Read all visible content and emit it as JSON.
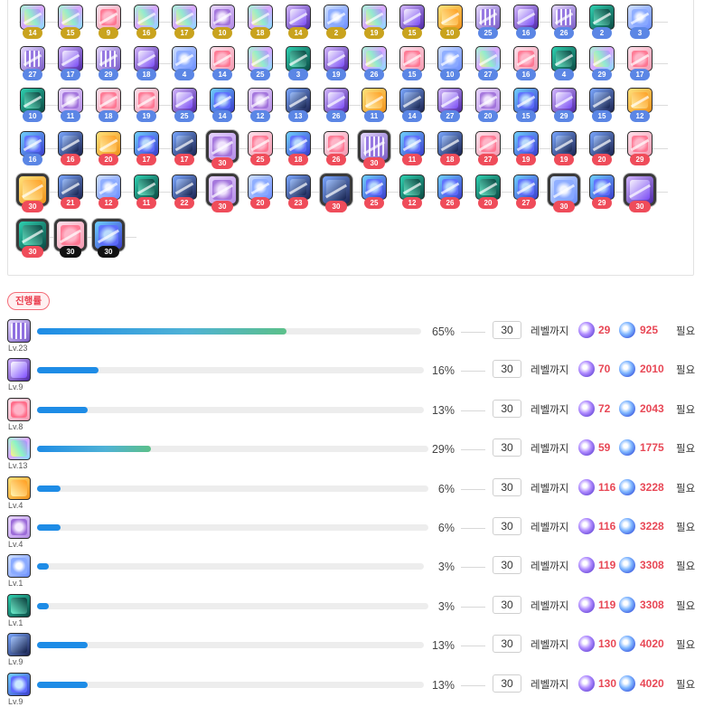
{
  "core_grid": {
    "rows": [
      [
        {
          "t": "rainbow",
          "lv": "14",
          "c": "gold"
        },
        {
          "t": "rainbow",
          "lv": "15",
          "c": "gold"
        },
        {
          "t": "pink",
          "lv": "9",
          "c": "gold"
        },
        {
          "t": "rainbow",
          "lv": "16",
          "c": "gold"
        },
        {
          "t": "rainbow",
          "lv": "17",
          "c": "gold"
        },
        {
          "t": "violet",
          "lv": "10",
          "c": "gold"
        },
        {
          "t": "rainbow",
          "lv": "18",
          "c": "gold"
        },
        {
          "t": "purple",
          "lv": "14",
          "c": "gold"
        },
        {
          "t": "gem",
          "lv": "2",
          "c": "gold"
        },
        {
          "t": "rainbow",
          "lv": "19",
          "c": "gold"
        },
        {
          "t": "purple",
          "lv": "15",
          "c": "gold"
        },
        {
          "t": "orange",
          "lv": "10",
          "c": "gold"
        },
        {
          "t": "cage",
          "lv": "25",
          "c": "blue"
        },
        {
          "t": "purple",
          "lv": "16",
          "c": "blue"
        },
        {
          "t": "cage",
          "lv": "26",
          "c": "blue"
        },
        {
          "t": "teal",
          "lv": "2",
          "c": "blue"
        },
        {
          "t": "gem",
          "lv": "3",
          "c": "blue"
        }
      ],
      [
        {
          "t": "cage",
          "lv": "27",
          "c": "blue"
        },
        {
          "t": "purple",
          "lv": "17",
          "c": "blue"
        },
        {
          "t": "cage",
          "lv": "29",
          "c": "blue"
        },
        {
          "t": "purple",
          "lv": "18",
          "c": "blue"
        },
        {
          "t": "gem",
          "lv": "4",
          "c": "blue"
        },
        {
          "t": "pink",
          "lv": "14",
          "c": "blue"
        },
        {
          "t": "rainbow",
          "lv": "25",
          "c": "blue"
        },
        {
          "t": "teal",
          "lv": "3",
          "c": "blue"
        },
        {
          "t": "purple",
          "lv": "19",
          "c": "blue"
        },
        {
          "t": "rainbow",
          "lv": "26",
          "c": "blue"
        },
        {
          "t": "pink",
          "lv": "15",
          "c": "blue"
        },
        {
          "t": "gem",
          "lv": "10",
          "c": "blue"
        },
        {
          "t": "rainbow",
          "lv": "27",
          "c": "blue"
        },
        {
          "t": "pink",
          "lv": "16",
          "c": "blue"
        },
        {
          "t": "teal",
          "lv": "4",
          "c": "blue"
        },
        {
          "t": "rainbow",
          "lv": "29",
          "c": "blue"
        },
        {
          "t": "pink",
          "lv": "17",
          "c": "blue"
        }
      ],
      [
        {
          "t": "teal",
          "lv": "10",
          "c": "blue"
        },
        {
          "t": "violet",
          "lv": "11",
          "c": "blue"
        },
        {
          "t": "pink",
          "lv": "18",
          "c": "blue"
        },
        {
          "t": "pink",
          "lv": "19",
          "c": "blue"
        },
        {
          "t": "purple",
          "lv": "25",
          "c": "blue"
        },
        {
          "t": "blueorb",
          "lv": "14",
          "c": "blue"
        },
        {
          "t": "violet",
          "lv": "12",
          "c": "blue"
        },
        {
          "t": "dark",
          "lv": "13",
          "c": "blue"
        },
        {
          "t": "purple",
          "lv": "26",
          "c": "blue"
        },
        {
          "t": "orange",
          "lv": "11",
          "c": "blue"
        },
        {
          "t": "dark",
          "lv": "14",
          "c": "blue"
        },
        {
          "t": "purple",
          "lv": "27",
          "c": "blue"
        },
        {
          "t": "violet",
          "lv": "20",
          "c": "blue"
        },
        {
          "t": "blueorb",
          "lv": "15",
          "c": "blue"
        },
        {
          "t": "purple",
          "lv": "29",
          "c": "blue"
        },
        {
          "t": "dark",
          "lv": "15",
          "c": "blue"
        },
        {
          "t": "orange",
          "lv": "12",
          "c": "blue"
        }
      ],
      [
        {
          "t": "blueorb",
          "lv": "16",
          "c": "blue"
        },
        {
          "t": "dark",
          "lv": "16",
          "c": "red"
        },
        {
          "t": "orange",
          "lv": "20",
          "c": "red"
        },
        {
          "t": "blueorb",
          "lv": "17",
          "c": "red"
        },
        {
          "t": "dark",
          "lv": "17",
          "c": "red"
        },
        {
          "t": "violet",
          "lv": "30",
          "c": "red",
          "boxed": true
        },
        {
          "t": "pink",
          "lv": "25",
          "c": "red"
        },
        {
          "t": "blueorb",
          "lv": "18",
          "c": "red"
        },
        {
          "t": "pink",
          "lv": "26",
          "c": "red"
        },
        {
          "t": "cage",
          "lv": "30",
          "c": "red",
          "boxed": true
        },
        {
          "t": "blueorb",
          "lv": "11",
          "c": "red"
        },
        {
          "t": "dark",
          "lv": "18",
          "c": "red"
        },
        {
          "t": "pink",
          "lv": "27",
          "c": "red"
        },
        {
          "t": "blueorb",
          "lv": "19",
          "c": "red"
        },
        {
          "t": "dark",
          "lv": "19",
          "c": "red"
        },
        {
          "t": "dark",
          "lv": "20",
          "c": "red"
        },
        {
          "t": "pink",
          "lv": "29",
          "c": "red"
        }
      ],
      [
        {
          "t": "orange",
          "lv": "30",
          "c": "red",
          "boxed": true
        },
        {
          "t": "dark",
          "lv": "21",
          "c": "red"
        },
        {
          "t": "gem",
          "lv": "12",
          "c": "red"
        },
        {
          "t": "teal",
          "lv": "11",
          "c": "red"
        },
        {
          "t": "dark",
          "lv": "22",
          "c": "red"
        },
        {
          "t": "violet",
          "lv": "30",
          "c": "red",
          "boxed": true
        },
        {
          "t": "gem",
          "lv": "20",
          "c": "red"
        },
        {
          "t": "dark",
          "lv": "23",
          "c": "red"
        },
        {
          "t": "dark",
          "lv": "30",
          "c": "red",
          "boxed": true
        },
        {
          "t": "blueorb",
          "lv": "25",
          "c": "red"
        },
        {
          "t": "teal",
          "lv": "12",
          "c": "red"
        },
        {
          "t": "blueorb",
          "lv": "26",
          "c": "red"
        },
        {
          "t": "teal",
          "lv": "20",
          "c": "red"
        },
        {
          "t": "blueorb",
          "lv": "27",
          "c": "red"
        },
        {
          "t": "gem",
          "lv": "30",
          "c": "red",
          "boxed": true
        },
        {
          "t": "blueorb",
          "lv": "29",
          "c": "red"
        },
        {
          "t": "purple",
          "lv": "30",
          "c": "red",
          "boxed": true
        }
      ],
      [
        {
          "t": "teal",
          "lv": "30",
          "c": "red",
          "boxed": true
        },
        {
          "t": "pink",
          "lv": "30",
          "c": "black",
          "boxed": true
        },
        {
          "t": "blueorb",
          "lv": "30",
          "c": "black",
          "boxed": true
        }
      ]
    ]
  },
  "progress_label": "진행률",
  "progress": [
    {
      "icon": "cage",
      "level": "Lv.23",
      "percent": 65,
      "percent_text": "65%",
      "target": "30",
      "until": "레벨까지",
      "fragment_a": "29",
      "fragment_b": "925",
      "need": "필요"
    },
    {
      "icon": "purple",
      "level": "Lv.9",
      "percent": 16,
      "percent_text": "16%",
      "target": "30",
      "until": "레벨까지",
      "fragment_a": "70",
      "fragment_b": "2010",
      "need": "필요"
    },
    {
      "icon": "pink",
      "level": "Lv.8",
      "percent": 13,
      "percent_text": "13%",
      "target": "30",
      "until": "레벨까지",
      "fragment_a": "72",
      "fragment_b": "2043",
      "need": "필요"
    },
    {
      "icon": "rainbow",
      "level": "Lv.13",
      "percent": 29,
      "percent_text": "29%",
      "target": "30",
      "until": "레벨까지",
      "fragment_a": "59",
      "fragment_b": "1775",
      "need": "필요"
    },
    {
      "icon": "orange",
      "level": "Lv.4",
      "percent": 6,
      "percent_text": "6%",
      "target": "30",
      "until": "레벨까지",
      "fragment_a": "116",
      "fragment_b": "3228",
      "need": "필요"
    },
    {
      "icon": "violet",
      "level": "Lv.4",
      "percent": 6,
      "percent_text": "6%",
      "target": "30",
      "until": "레벨까지",
      "fragment_a": "116",
      "fragment_b": "3228",
      "need": "필요"
    },
    {
      "icon": "gem",
      "level": "Lv.1",
      "percent": 3,
      "percent_text": "3%",
      "target": "30",
      "until": "레벨까지",
      "fragment_a": "119",
      "fragment_b": "3308",
      "need": "필요"
    },
    {
      "icon": "teal",
      "level": "Lv.1",
      "percent": 3,
      "percent_text": "3%",
      "target": "30",
      "until": "레벨까지",
      "fragment_a": "119",
      "fragment_b": "3308",
      "need": "필요"
    },
    {
      "icon": "dark",
      "level": "Lv.9",
      "percent": 13,
      "percent_text": "13%",
      "target": "30",
      "until": "레벨까지",
      "fragment_a": "130",
      "fragment_b": "4020",
      "need": "필요"
    },
    {
      "icon": "blueorb",
      "level": "Lv.9",
      "percent": 13,
      "percent_text": "13%",
      "target": "30",
      "until": "레벨까지",
      "fragment_a": "130",
      "fragment_b": "4020",
      "need": "필요"
    }
  ]
}
